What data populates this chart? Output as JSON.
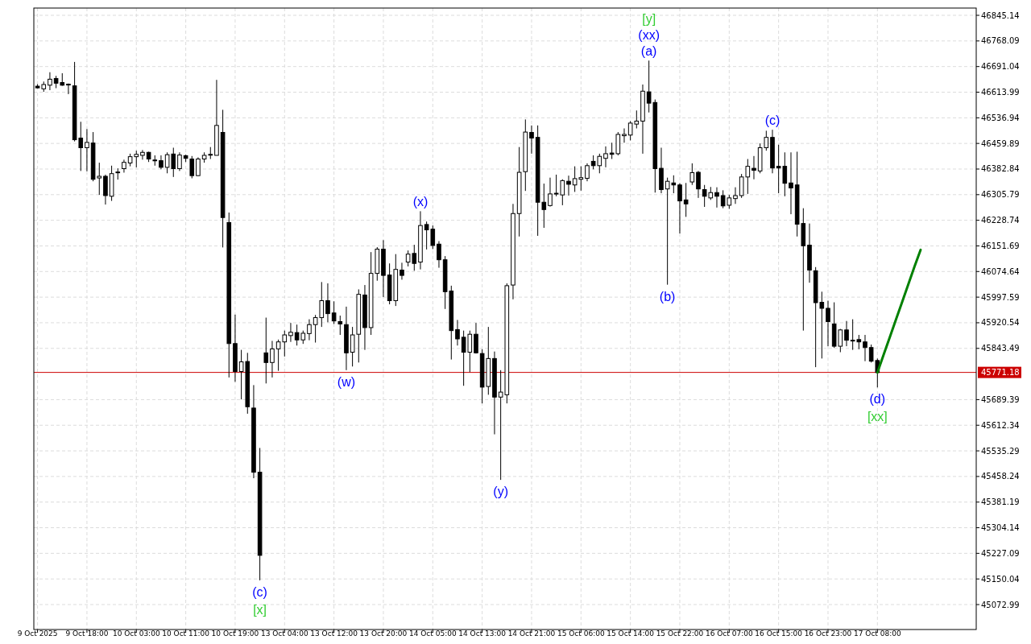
{
  "chart_data": {
    "type": "candlestick",
    "categories": [
      "9 Oct 2025",
      null,
      null,
      null,
      null,
      null,
      null,
      null,
      "9 Oct 18:00",
      null,
      null,
      null,
      null,
      null,
      null,
      null,
      "10 Oct 03:00",
      null,
      null,
      null,
      null,
      null,
      null,
      null,
      "10 Oct 11:00",
      null,
      null,
      null,
      null,
      null,
      null,
      null,
      "10 Oct 19:00",
      null,
      null,
      null,
      null,
      null,
      null,
      null,
      "13 Oct 04:00",
      null,
      null,
      null,
      null,
      null,
      null,
      null,
      "13 Oct 12:00",
      null,
      null,
      null,
      null,
      null,
      null,
      null,
      "13 Oct 20:00",
      null,
      null,
      null,
      null,
      null,
      null,
      null,
      "14 Oct 05:00",
      null,
      null,
      null,
      null,
      null,
      null,
      null,
      "14 Oct 13:00",
      null,
      null,
      null,
      null,
      null,
      null,
      null,
      "14 Oct 21:00",
      null,
      null,
      null,
      null,
      null,
      null,
      null,
      "15 Oct 06:00",
      null,
      null,
      null,
      null,
      null,
      null,
      null,
      "15 Oct 14:00",
      null,
      null,
      null,
      null,
      null,
      null,
      null,
      "15 Oct 22:00",
      null,
      null,
      null,
      null,
      null,
      null,
      null,
      "16 Oct 07:00",
      null,
      null,
      null,
      null,
      null,
      null,
      null,
      "16 Oct 15:00",
      null,
      null,
      null,
      null,
      null,
      null,
      null,
      "16 Oct 23:00",
      null,
      null,
      null,
      null,
      null,
      null,
      null,
      "17 Oct 08:00",
      null,
      null,
      null,
      null,
      null,
      null,
      null,
      null,
      null,
      null,
      null,
      null,
      null,
      null,
      null,
      null
    ],
    "ohlc": [
      [
        46632,
        46638,
        46625,
        46627
      ],
      [
        46624,
        46646,
        46615,
        46637
      ],
      [
        46635,
        46674,
        46620,
        46653
      ],
      [
        46655,
        46663,
        46626,
        46641
      ],
      [
        46643,
        46671,
        46633,
        46635
      ],
      [
        46638,
        46640,
        46608,
        46637
      ],
      [
        46633,
        46705,
        46466,
        46471
      ],
      [
        46476,
        46525,
        46377,
        46447
      ],
      [
        46447,
        46503,
        46376,
        46463
      ],
      [
        46461,
        46494,
        46346,
        46352
      ],
      [
        46356,
        46402,
        46305,
        46361
      ],
      [
        46361,
        46366,
        46276,
        46303
      ],
      [
        46301,
        46393,
        46287,
        46369
      ],
      [
        46372,
        46385,
        46351,
        46374
      ],
      [
        46384,
        46411,
        46372,
        46403
      ],
      [
        46401,
        46429,
        46391,
        46420
      ],
      [
        46420,
        46438,
        46388,
        46427
      ],
      [
        46424,
        46440,
        46411,
        46433
      ],
      [
        46433,
        46435,
        46404,
        46413
      ],
      [
        46410,
        46424,
        46393,
        46408
      ],
      [
        46408,
        46424,
        46382,
        46388
      ],
      [
        46388,
        46433,
        46370,
        46426
      ],
      [
        46428,
        46447,
        46359,
        46384
      ],
      [
        46384,
        46433,
        46377,
        46425
      ],
      [
        46423,
        46426,
        46404,
        46415
      ],
      [
        46413,
        46422,
        46355,
        46363
      ],
      [
        46363,
        46418,
        46362,
        46413
      ],
      [
        46413,
        46433,
        46402,
        46424
      ],
      [
        46425,
        46449,
        46413,
        46427
      ],
      [
        46424,
        46651,
        46424,
        46514
      ],
      [
        46493,
        46561,
        46147,
        46237
      ],
      [
        46222,
        46252,
        45756,
        45858
      ],
      [
        45858,
        45945,
        45743,
        45774
      ],
      [
        45774,
        45839,
        45690,
        45803
      ],
      [
        45804,
        45830,
        45647,
        45668
      ],
      [
        45664,
        45733,
        45453,
        45471
      ],
      [
        45471,
        45544,
        45146,
        45221
      ],
      [
        45830,
        45936,
        45738,
        45801
      ],
      [
        45801,
        45866,
        45756,
        45842
      ],
      [
        45842,
        45870,
        45776,
        45863
      ],
      [
        45863,
        45897,
        45819,
        45884
      ],
      [
        45882,
        45920,
        45863,
        45892
      ],
      [
        45891,
        45915,
        45852,
        45869
      ],
      [
        45869,
        45897,
        45857,
        45889
      ],
      [
        45888,
        45931,
        45868,
        45915
      ],
      [
        45915,
        45944,
        45861,
        45936
      ],
      [
        45936,
        46043,
        45908,
        45987
      ],
      [
        45987,
        46039,
        45922,
        45948
      ],
      [
        45950,
        45985,
        45917,
        45926
      ],
      [
        45924,
        45942,
        45884,
        45917
      ],
      [
        45915,
        45969,
        45778,
        45830
      ],
      [
        45832,
        45908,
        45789,
        45884
      ],
      [
        45886,
        46021,
        45801,
        46006
      ],
      [
        46004,
        46034,
        45839,
        45906
      ],
      [
        45906,
        46133,
        45884,
        46069
      ],
      [
        46069,
        46148,
        46047,
        46142
      ],
      [
        46142,
        46169,
        45998,
        46063
      ],
      [
        46064,
        46099,
        45976,
        45987
      ],
      [
        45987,
        46127,
        45971,
        46081
      ],
      [
        46079,
        46101,
        46050,
        46063
      ],
      [
        46103,
        46138,
        46090,
        46127
      ],
      [
        46129,
        46155,
        46077,
        46099
      ],
      [
        46103,
        46256,
        46081,
        46213
      ],
      [
        46216,
        46225,
        46141,
        46200
      ],
      [
        46202,
        46213,
        46142,
        46153
      ],
      [
        46157,
        46166,
        46086,
        46110
      ],
      [
        46110,
        46121,
        45962,
        46014
      ],
      [
        46016,
        46032,
        45810,
        45897
      ],
      [
        45900,
        45929,
        45852,
        45872
      ],
      [
        45877,
        45897,
        45731,
        45832
      ],
      [
        45832,
        45897,
        45772,
        45886
      ],
      [
        45886,
        45920,
        45828,
        45830
      ],
      [
        45828,
        45841,
        45678,
        45727
      ],
      [
        45729,
        45908,
        45704,
        45813
      ],
      [
        45813,
        45834,
        45585,
        45697
      ],
      [
        45697,
        45778,
        45448,
        45712
      ],
      [
        45704,
        46039,
        45678,
        46032
      ],
      [
        46034,
        46278,
        45991,
        46249
      ],
      [
        46249,
        46449,
        46180,
        46373
      ],
      [
        46375,
        46532,
        46317,
        46494
      ],
      [
        46493,
        46514,
        46429,
        46476
      ],
      [
        46478,
        46514,
        46182,
        46283
      ],
      [
        46283,
        46339,
        46206,
        46261
      ],
      [
        46273,
        46357,
        46270,
        46308
      ],
      [
        46308,
        46366,
        46301,
        46310
      ],
      [
        46305,
        46352,
        46274,
        46348
      ],
      [
        46346,
        46363,
        46303,
        46337
      ],
      [
        46335,
        46391,
        46314,
        46354
      ],
      [
        46352,
        46391,
        46318,
        46357
      ],
      [
        46355,
        46400,
        46346,
        46393
      ],
      [
        46406,
        46424,
        46382,
        46393
      ],
      [
        46393,
        46429,
        46370,
        46421
      ],
      [
        46415,
        46451,
        46388,
        46429
      ],
      [
        46431,
        46462,
        46413,
        46427
      ],
      [
        46429,
        46494,
        46424,
        46487
      ],
      [
        46483,
        46505,
        46462,
        46487
      ],
      [
        46485,
        46527,
        46469,
        46521
      ],
      [
        46518,
        46559,
        46505,
        46527
      ],
      [
        46527,
        46637,
        46429,
        46617
      ],
      [
        46615,
        46709,
        46553,
        46581
      ],
      [
        46583,
        46592,
        46312,
        46384
      ],
      [
        46385,
        46447,
        46310,
        46321
      ],
      [
        46323,
        46357,
        46035,
        46346
      ],
      [
        46341,
        46364,
        46310,
        46335
      ],
      [
        46335,
        46340,
        46189,
        46287
      ],
      [
        46290,
        46341,
        46239,
        46278
      ],
      [
        46344,
        46400,
        46335,
        46372
      ],
      [
        46373,
        46377,
        46296,
        46323
      ],
      [
        46321,
        46335,
        46269,
        46301
      ],
      [
        46296,
        46329,
        46290,
        46312
      ],
      [
        46312,
        46328,
        46267,
        46301
      ],
      [
        46303,
        46319,
        46265,
        46272
      ],
      [
        46274,
        46305,
        46263,
        46296
      ],
      [
        46294,
        46328,
        46278,
        46303
      ],
      [
        46303,
        46368,
        46296,
        46359
      ],
      [
        46359,
        46413,
        46308,
        46391
      ],
      [
        46385,
        46422,
        46352,
        46379
      ],
      [
        46377,
        46460,
        46370,
        46447
      ],
      [
        46447,
        46498,
        46438,
        46478
      ],
      [
        46478,
        46501,
        46370,
        46386
      ],
      [
        46391,
        46456,
        46310,
        46386
      ],
      [
        46391,
        46433,
        46301,
        46340
      ],
      [
        46341,
        46433,
        46247,
        46326
      ],
      [
        46335,
        46435,
        46180,
        46217
      ],
      [
        46219,
        46265,
        45897,
        46152
      ],
      [
        46154,
        46219,
        46041,
        46079
      ],
      [
        46077,
        46088,
        45787,
        45981
      ],
      [
        45982,
        46014,
        45813,
        45964
      ],
      [
        45964,
        45987,
        45850,
        45924
      ],
      [
        45917,
        45982,
        45845,
        45850
      ],
      [
        45850,
        45902,
        45832,
        45899
      ],
      [
        45899,
        45926,
        45850,
        45868
      ],
      [
        45868,
        45931,
        45839,
        45866
      ],
      [
        45870,
        45884,
        45841,
        45863
      ],
      [
        45863,
        45884,
        45805,
        45846
      ],
      [
        45846,
        45855,
        45801,
        45805
      ],
      [
        45807,
        45813,
        45726,
        45771
      ],
      null,
      null,
      null,
      null,
      null,
      null,
      null,
      null,
      null,
      null,
      null,
      null,
      null,
      null,
      null,
      null
    ],
    "series": [
      {
        "type": "line",
        "color": "#008000",
        "values": [
          null,
          null,
          null,
          null,
          null,
          null,
          null,
          null,
          null,
          null,
          null,
          null,
          null,
          null,
          null,
          null,
          null,
          null,
          null,
          null,
          null,
          null,
          null,
          null,
          null,
          null,
          null,
          null,
          null,
          null,
          null,
          null,
          null,
          null,
          null,
          null,
          null,
          null,
          null,
          null,
          null,
          null,
          null,
          null,
          null,
          null,
          null,
          null,
          null,
          null,
          null,
          null,
          null,
          null,
          null,
          null,
          null,
          null,
          null,
          null,
          null,
          null,
          null,
          null,
          null,
          null,
          null,
          null,
          null,
          null,
          null,
          null,
          null,
          null,
          null,
          null,
          null,
          null,
          null,
          null,
          null,
          null,
          null,
          null,
          null,
          null,
          null,
          null,
          null,
          null,
          null,
          null,
          null,
          null,
          null,
          null,
          null,
          null,
          null,
          null,
          null,
          null,
          null,
          null,
          null,
          null,
          null,
          null,
          null,
          null,
          null,
          null,
          null,
          null,
          null,
          null,
          null,
          null,
          null,
          null,
          null,
          null,
          null,
          null,
          null,
          null,
          null,
          null,
          null,
          null,
          null,
          null,
          null,
          null,
          null,
          null,
          45771,
          45824,
          45877,
          45930,
          45983,
          46036,
          46089,
          46140,
          null,
          null,
          null,
          null,
          null,
          null,
          null,
          null,
          null
        ]
      }
    ],
    "ylim": [
      44998,
      46867
    ],
    "yticks": [
      45072.99,
      45150.04,
      45227.09,
      45304.14,
      45381.19,
      45458.24,
      45535.29,
      45612.34,
      45689.39,
      45843.49,
      45920.54,
      45997.59,
      46074.64,
      46151.69,
      46228.74,
      46305.79,
      46382.84,
      46459.89,
      46536.94,
      46613.99,
      46691.04,
      46768.09,
      46845.14
    ],
    "grid": true,
    "ref_lines": [
      {
        "axis": "y",
        "value": 45771.18,
        "label": "45771.18",
        "color": "#cc0000"
      }
    ],
    "annotations": [
      {
        "text": "(c)",
        "y": 45146
      },
      {
        "text": "[x]",
        "y": 45146
      },
      {
        "text": "(w)",
        "y": 45778
      },
      {
        "text": "(x)",
        "y": 46256
      },
      {
        "text": "(y)",
        "y": 45448
      },
      {
        "text": "(a)",
        "y": 46709
      },
      {
        "text": "(xx)",
        "y": 46709
      },
      {
        "text": "[y]",
        "y": 46709
      },
      {
        "text": "(b)",
        "y": 46035
      },
      {
        "text": "(c)",
        "y": 46501
      },
      {
        "text": "(d)",
        "x": "17 Oct 08:00",
        "y": 45726
      },
      {
        "text": "[xx]",
        "x": "17 Oct 08:00",
        "y": 45726
      }
    ]
  }
}
